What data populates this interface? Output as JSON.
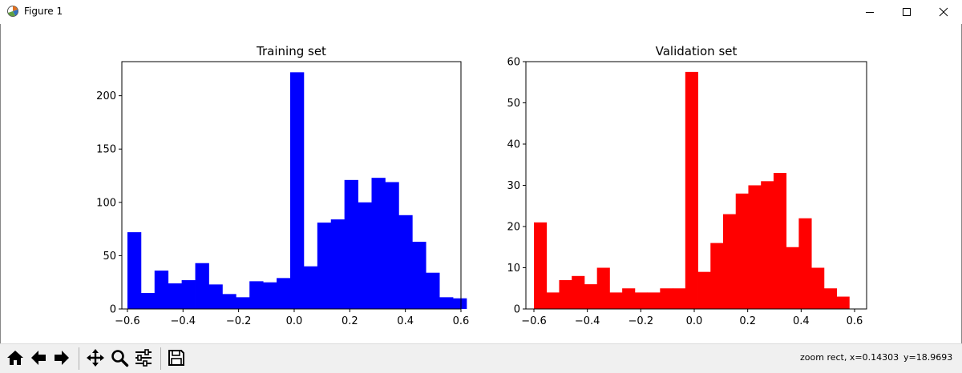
{
  "window": {
    "title": "Figure 1",
    "icons": [
      "figure-app-icon",
      "minimize-icon",
      "maximize-icon",
      "close-icon"
    ]
  },
  "toolbar": {
    "icons": [
      "home-icon",
      "back-arrow-icon",
      "forward-arrow-icon",
      "pan-icon",
      "zoom-icon",
      "configure-subplots-icon",
      "save-icon"
    ],
    "status_mode": "zoom rect, x=0.14303",
    "status_y": "y=18.9693"
  },
  "chart_data": [
    {
      "type": "bar",
      "title": "Training set",
      "color": "#0000ff",
      "xlim": [
        -0.62,
        0.6
      ],
      "ylim": [
        0,
        232
      ],
      "xticks": [
        -0.6,
        -0.4,
        -0.2,
        0.0,
        0.2,
        0.4,
        0.6
      ],
      "xtick_labels": [
        "−0.6",
        "−0.4",
        "−0.2",
        "0.0",
        "0.2",
        "0.4",
        "0.6"
      ],
      "yticks": [
        0,
        50,
        100,
        150,
        200
      ],
      "bin_start": -0.6,
      "bin_width": 0.0488,
      "values": [
        72,
        15,
        36,
        24,
        27,
        43,
        23,
        14,
        11,
        26,
        25,
        29,
        222,
        40,
        81,
        84,
        121,
        100,
        123,
        119,
        88,
        63,
        34,
        11,
        10
      ]
    },
    {
      "type": "bar",
      "title": "Validation set",
      "color": "#ff0000",
      "xlim": [
        -0.63,
        0.645
      ],
      "ylim": [
        0,
        60
      ],
      "xticks": [
        -0.6,
        -0.4,
        -0.2,
        0.0,
        0.2,
        0.4,
        0.6
      ],
      "xtick_labels": [
        "−0.6",
        "−0.4",
        "−0.2",
        "0.0",
        "0.2",
        "0.4",
        "0.6"
      ],
      "yticks": [
        0,
        10,
        20,
        30,
        40,
        50,
        60
      ],
      "bin_start": -0.6,
      "bin_width": 0.0472,
      "values": [
        21,
        4,
        7,
        8,
        6,
        10,
        4,
        5,
        4,
        4,
        5,
        5,
        57.5,
        9,
        16,
        23,
        28,
        30,
        31,
        33,
        15,
        22,
        10,
        5,
        3
      ]
    }
  ]
}
